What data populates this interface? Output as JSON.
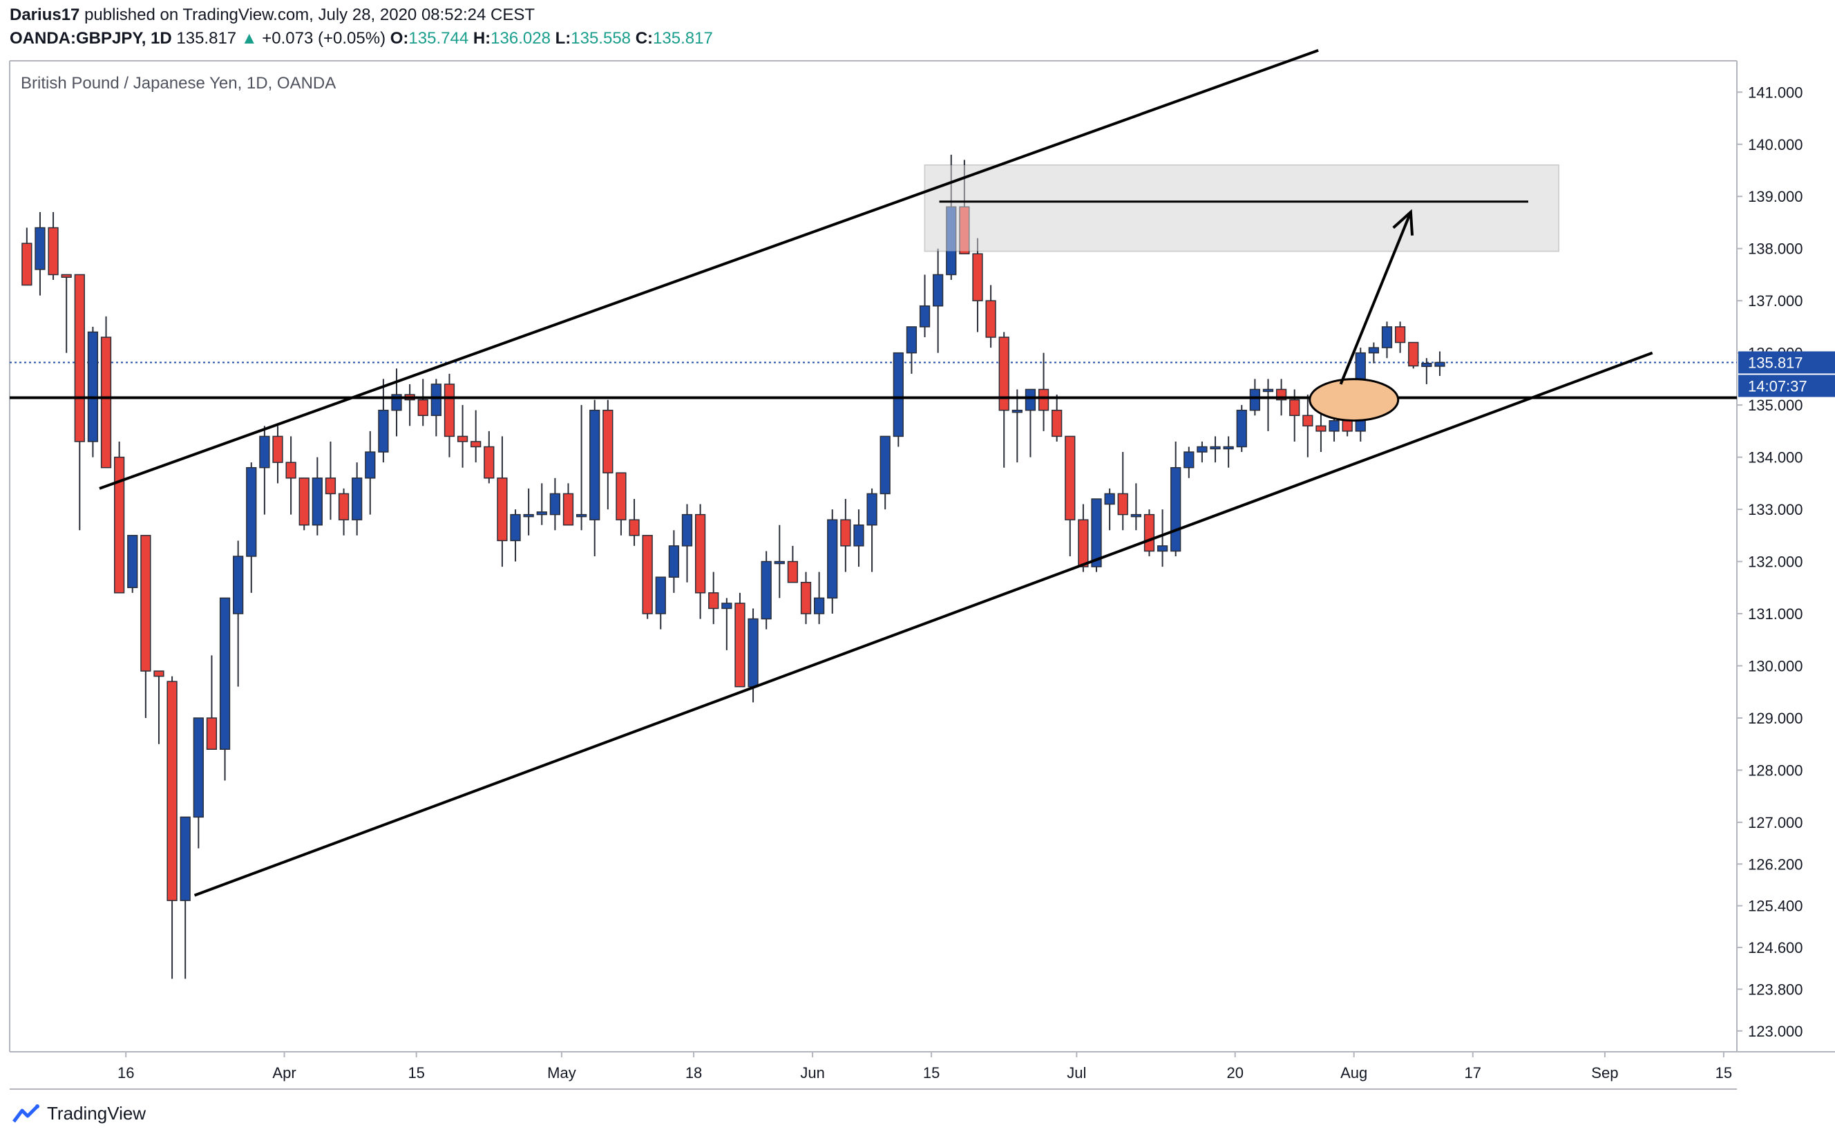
{
  "header": {
    "author": "Darius17",
    "published_text": "published on TradingView.com, July 28, 2020 08:52:24 CEST",
    "symbol": "OANDA:GBPJPY, 1D",
    "last": "135.817",
    "change_arrow": "▲",
    "change": "+0.073 (+0.05%)",
    "o_label": "O:",
    "o_value": "135.744",
    "h_label": "H:",
    "h_value": "136.028",
    "l_label": "L:",
    "l_value": "135.558",
    "c_label": "C:",
    "c_value": "135.817"
  },
  "footer": {
    "brand": "TradingView"
  },
  "colors": {
    "up": "#1e4ea8",
    "down": "#e8423a",
    "zone": "#e6e6e6",
    "ellipse": "#f5c090",
    "price_tag": "#1e4ea8"
  },
  "chart_data": {
    "type": "candlestick",
    "title": "British Pound / Japanese Yen, 1D, OANDA",
    "price_scale": {
      "ylim": [
        122.6,
        141.6
      ],
      "ticks": [
        "141.000",
        "140.000",
        "139.000",
        "138.000",
        "137.000",
        "136.000",
        "135.000",
        "134.000",
        "133.000",
        "132.000",
        "131.000",
        "130.000",
        "129.000",
        "128.000",
        "127.000",
        "126.200",
        "125.400",
        "124.600",
        "123.800",
        "123.000"
      ],
      "tick_values": [
        141,
        140,
        139,
        138,
        137,
        136,
        135,
        134,
        133,
        132,
        131,
        130,
        129,
        128,
        127,
        126.2,
        125.4,
        124.6,
        123.8,
        123.0
      ]
    },
    "time_axis": {
      "labels": [
        "16",
        "Apr",
        "15",
        "May",
        "18",
        "Jun",
        "15",
        "Jul",
        "20",
        "Aug",
        "17",
        "Sep",
        "15"
      ],
      "label_bars": [
        7.5,
        19.5,
        29.5,
        40.5,
        50.5,
        59.5,
        68.5,
        79.5,
        91.5,
        100.5,
        109.5,
        119.5,
        128.5
      ],
      "xlim": [
        -1.3,
        129.5
      ]
    },
    "last_price": {
      "value": 135.817,
      "label": "135.817",
      "countdown": "14:07:37"
    },
    "support_level": 135.14,
    "candles": [
      {
        "o": 138.1,
        "h": 138.4,
        "l": 137.3,
        "c": 137.3
      },
      {
        "o": 137.6,
        "h": 138.7,
        "l": 137.1,
        "c": 138.4
      },
      {
        "o": 138.4,
        "h": 138.7,
        "l": 137.4,
        "c": 137.5
      },
      {
        "o": 137.5,
        "h": 137.5,
        "l": 136.0,
        "c": 137.45
      },
      {
        "o": 137.5,
        "h": 137.5,
        "l": 132.6,
        "c": 134.3
      },
      {
        "o": 134.3,
        "h": 136.5,
        "l": 134.0,
        "c": 136.4
      },
      {
        "o": 136.3,
        "h": 136.7,
        "l": 133.8,
        "c": 133.8
      },
      {
        "o": 134.0,
        "h": 134.3,
        "l": 131.4,
        "c": 131.4
      },
      {
        "o": 131.5,
        "h": 132.5,
        "l": 131.4,
        "c": 132.5
      },
      {
        "o": 132.5,
        "h": 132.5,
        "l": 129.0,
        "c": 129.9
      },
      {
        "o": 129.9,
        "h": 129.9,
        "l": 128.5,
        "c": 129.8
      },
      {
        "o": 129.7,
        "h": 129.8,
        "l": 124.0,
        "c": 125.5
      },
      {
        "o": 125.5,
        "h": 127.1,
        "l": 124.0,
        "c": 127.1
      },
      {
        "o": 127.1,
        "h": 129.0,
        "l": 126.5,
        "c": 129.0
      },
      {
        "o": 129.0,
        "h": 130.2,
        "l": 128.4,
        "c": 128.4
      },
      {
        "o": 128.4,
        "h": 131.3,
        "l": 127.8,
        "c": 131.3
      },
      {
        "o": 131.0,
        "h": 132.4,
        "l": 129.6,
        "c": 132.1
      },
      {
        "o": 132.1,
        "h": 133.9,
        "l": 131.4,
        "c": 133.8
      },
      {
        "o": 133.8,
        "h": 134.6,
        "l": 132.9,
        "c": 134.4
      },
      {
        "o": 134.4,
        "h": 134.6,
        "l": 133.5,
        "c": 133.9
      },
      {
        "o": 133.9,
        "h": 134.4,
        "l": 132.9,
        "c": 133.6
      },
      {
        "o": 133.6,
        "h": 133.6,
        "l": 132.6,
        "c": 132.7
      },
      {
        "o": 132.7,
        "h": 134.0,
        "l": 132.5,
        "c": 133.6
      },
      {
        "o": 133.6,
        "h": 134.3,
        "l": 132.8,
        "c": 133.3
      },
      {
        "o": 133.3,
        "h": 133.4,
        "l": 132.5,
        "c": 132.8
      },
      {
        "o": 132.8,
        "h": 133.9,
        "l": 132.5,
        "c": 133.6
      },
      {
        "o": 133.6,
        "h": 134.5,
        "l": 132.9,
        "c": 134.1
      },
      {
        "o": 134.1,
        "h": 135.5,
        "l": 133.9,
        "c": 134.9
      },
      {
        "o": 134.9,
        "h": 135.7,
        "l": 134.4,
        "c": 135.2
      },
      {
        "o": 135.2,
        "h": 135.4,
        "l": 134.6,
        "c": 135.1
      },
      {
        "o": 135.1,
        "h": 135.5,
        "l": 134.6,
        "c": 134.8
      },
      {
        "o": 134.8,
        "h": 135.5,
        "l": 134.4,
        "c": 135.4
      },
      {
        "o": 135.4,
        "h": 135.6,
        "l": 134.0,
        "c": 134.4
      },
      {
        "o": 134.4,
        "h": 135.0,
        "l": 133.8,
        "c": 134.3
      },
      {
        "o": 134.3,
        "h": 134.9,
        "l": 133.9,
        "c": 134.2
      },
      {
        "o": 134.2,
        "h": 134.5,
        "l": 133.5,
        "c": 133.6
      },
      {
        "o": 133.6,
        "h": 134.4,
        "l": 131.9,
        "c": 132.4
      },
      {
        "o": 132.4,
        "h": 133.0,
        "l": 132.0,
        "c": 132.9
      },
      {
        "o": 132.9,
        "h": 133.4,
        "l": 132.5,
        "c": 132.9
      },
      {
        "o": 132.9,
        "h": 133.5,
        "l": 132.7,
        "c": 132.95
      },
      {
        "o": 132.9,
        "h": 133.6,
        "l": 132.6,
        "c": 133.3
      },
      {
        "o": 133.3,
        "h": 133.5,
        "l": 132.7,
        "c": 132.7
      },
      {
        "o": 132.9,
        "h": 135.0,
        "l": 132.6,
        "c": 132.9
      },
      {
        "o": 132.8,
        "h": 135.1,
        "l": 132.1,
        "c": 134.9
      },
      {
        "o": 134.9,
        "h": 135.1,
        "l": 133.0,
        "c": 133.7
      },
      {
        "o": 133.7,
        "h": 133.7,
        "l": 132.5,
        "c": 132.8
      },
      {
        "o": 132.8,
        "h": 133.2,
        "l": 132.3,
        "c": 132.5
      },
      {
        "o": 132.5,
        "h": 132.5,
        "l": 130.9,
        "c": 131.0
      },
      {
        "o": 131.0,
        "h": 131.7,
        "l": 130.7,
        "c": 131.7
      },
      {
        "o": 131.7,
        "h": 132.6,
        "l": 131.4,
        "c": 132.3
      },
      {
        "o": 132.3,
        "h": 133.1,
        "l": 131.6,
        "c": 132.9
      },
      {
        "o": 132.9,
        "h": 133.1,
        "l": 130.9,
        "c": 131.4
      },
      {
        "o": 131.4,
        "h": 131.8,
        "l": 130.8,
        "c": 131.1
      },
      {
        "o": 131.1,
        "h": 131.3,
        "l": 130.3,
        "c": 131.2
      },
      {
        "o": 131.2,
        "h": 131.4,
        "l": 129.6,
        "c": 129.6
      },
      {
        "o": 129.6,
        "h": 131.1,
        "l": 129.3,
        "c": 130.9
      },
      {
        "o": 130.9,
        "h": 132.2,
        "l": 130.7,
        "c": 132.0
      },
      {
        "o": 132.0,
        "h": 132.7,
        "l": 131.3,
        "c": 132.0
      },
      {
        "o": 132.0,
        "h": 132.3,
        "l": 131.6,
        "c": 131.6
      },
      {
        "o": 131.6,
        "h": 131.8,
        "l": 130.8,
        "c": 131.0
      },
      {
        "o": 131.0,
        "h": 131.8,
        "l": 130.8,
        "c": 131.3
      },
      {
        "o": 131.3,
        "h": 133.0,
        "l": 131.0,
        "c": 132.8
      },
      {
        "o": 132.8,
        "h": 133.2,
        "l": 131.8,
        "c": 132.3
      },
      {
        "o": 132.3,
        "h": 133.0,
        "l": 131.9,
        "c": 132.7
      },
      {
        "o": 132.7,
        "h": 133.4,
        "l": 131.8,
        "c": 133.3
      },
      {
        "o": 133.3,
        "h": 134.4,
        "l": 133.0,
        "c": 134.4
      },
      {
        "o": 134.4,
        "h": 136.0,
        "l": 134.2,
        "c": 136.0
      },
      {
        "o": 136.0,
        "h": 136.5,
        "l": 135.6,
        "c": 136.5
      },
      {
        "o": 136.5,
        "h": 137.5,
        "l": 136.3,
        "c": 136.9
      },
      {
        "o": 136.9,
        "h": 138.0,
        "l": 136.0,
        "c": 137.5
      },
      {
        "o": 137.5,
        "h": 139.8,
        "l": 137.4,
        "c": 138.8
      },
      {
        "o": 138.8,
        "h": 139.7,
        "l": 137.9,
        "c": 137.9
      },
      {
        "o": 137.9,
        "h": 138.2,
        "l": 136.4,
        "c": 137.0
      },
      {
        "o": 137.0,
        "h": 137.3,
        "l": 136.1,
        "c": 136.3
      },
      {
        "o": 136.3,
        "h": 136.4,
        "l": 133.8,
        "c": 134.9
      },
      {
        "o": 134.9,
        "h": 135.3,
        "l": 133.9,
        "c": 134.9
      },
      {
        "o": 134.9,
        "h": 135.3,
        "l": 134.0,
        "c": 135.3
      },
      {
        "o": 135.3,
        "h": 136.0,
        "l": 134.5,
        "c": 134.9
      },
      {
        "o": 134.9,
        "h": 135.2,
        "l": 134.3,
        "c": 134.4
      },
      {
        "o": 134.4,
        "h": 134.4,
        "l": 132.1,
        "c": 132.8
      },
      {
        "o": 132.8,
        "h": 133.1,
        "l": 131.8,
        "c": 131.9
      },
      {
        "o": 131.9,
        "h": 133.2,
        "l": 131.8,
        "c": 133.2
      },
      {
        "o": 133.1,
        "h": 133.4,
        "l": 132.6,
        "c": 133.3
      },
      {
        "o": 133.3,
        "h": 134.1,
        "l": 132.6,
        "c": 132.9
      },
      {
        "o": 132.9,
        "h": 133.5,
        "l": 132.6,
        "c": 132.9
      },
      {
        "o": 132.9,
        "h": 133.0,
        "l": 132.1,
        "c": 132.2
      },
      {
        "o": 132.2,
        "h": 133.0,
        "l": 131.9,
        "c": 132.3
      },
      {
        "o": 132.2,
        "h": 134.3,
        "l": 132.1,
        "c": 133.8
      },
      {
        "o": 133.8,
        "h": 134.2,
        "l": 133.6,
        "c": 134.1
      },
      {
        "o": 134.1,
        "h": 134.3,
        "l": 133.9,
        "c": 134.2
      },
      {
        "o": 134.2,
        "h": 134.4,
        "l": 133.9,
        "c": 134.2
      },
      {
        "o": 134.2,
        "h": 134.4,
        "l": 133.8,
        "c": 134.2
      },
      {
        "o": 134.2,
        "h": 135.0,
        "l": 134.1,
        "c": 134.9
      },
      {
        "o": 134.9,
        "h": 135.5,
        "l": 134.8,
        "c": 135.3
      },
      {
        "o": 135.3,
        "h": 135.5,
        "l": 134.5,
        "c": 135.3
      },
      {
        "o": 135.3,
        "h": 135.5,
        "l": 134.8,
        "c": 135.1
      },
      {
        "o": 135.1,
        "h": 135.3,
        "l": 134.3,
        "c": 134.8
      },
      {
        "o": 134.8,
        "h": 135.2,
        "l": 134.0,
        "c": 134.6
      },
      {
        "o": 134.6,
        "h": 135.3,
        "l": 134.1,
        "c": 134.5
      },
      {
        "o": 134.5,
        "h": 135.1,
        "l": 134.3,
        "c": 134.7
      },
      {
        "o": 134.7,
        "h": 135.2,
        "l": 134.4,
        "c": 134.5
      },
      {
        "o": 134.5,
        "h": 136.1,
        "l": 134.3,
        "c": 136.0
      },
      {
        "o": 136.0,
        "h": 136.2,
        "l": 135.8,
        "c": 136.1
      },
      {
        "o": 136.1,
        "h": 136.6,
        "l": 135.9,
        "c": 136.5
      },
      {
        "o": 136.5,
        "h": 136.6,
        "l": 136.0,
        "c": 136.2
      },
      {
        "o": 136.2,
        "h": 136.2,
        "l": 135.7,
        "c": 135.75
      },
      {
        "o": 135.74,
        "h": 135.9,
        "l": 135.4,
        "c": 135.8
      },
      {
        "o": 135.744,
        "h": 136.028,
        "l": 135.558,
        "c": 135.817
      }
    ],
    "drawings": {
      "channel_upper": {
        "bar1": 5.5,
        "p1": 133.4,
        "bar2": 97.8,
        "p2": 141.8
      },
      "channel_lower": {
        "bar1": 12.7,
        "p1": 125.6,
        "bar2": 123.1,
        "p2": 136.0
      },
      "resistance_zone": {
        "bar1": 68.0,
        "bar2": 116.0,
        "p_top": 139.6,
        "p_bottom": 137.95
      },
      "zone_midline": {
        "bar1": 69.1,
        "bar2": 113.7,
        "price": 138.9
      },
      "target_arrow": {
        "bar1": 99.5,
        "p1": 135.4,
        "bar2": 104.8,
        "p2": 138.7
      },
      "highlight_ellipse": {
        "bar": 100.5,
        "price": 135.1
      }
    }
  }
}
